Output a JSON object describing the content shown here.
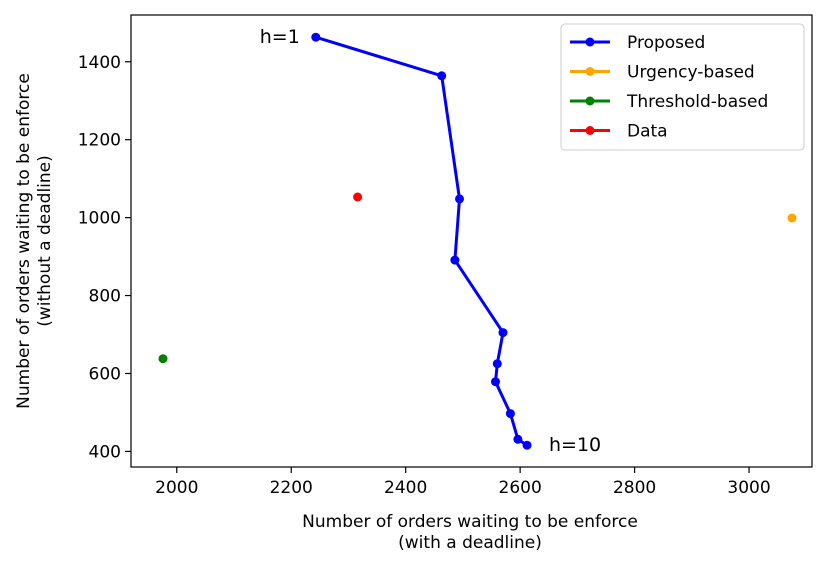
{
  "chart_data": {
    "type": "line",
    "xlabel": [
      "Number of orders waiting to be enforce",
      "(with a deadline)"
    ],
    "ylabel": [
      "Number of orders waiting to be enforce",
      "(without a deadline)"
    ],
    "xlim": [
      1920,
      3110
    ],
    "ylim": [
      360,
      1520
    ],
    "xticks": [
      2000,
      2200,
      2400,
      2600,
      2800,
      3000
    ],
    "yticks": [
      400,
      600,
      800,
      1000,
      1200,
      1400
    ],
    "grid": false,
    "legend_position": "top-right",
    "series": [
      {
        "name": "Proposed",
        "color": "#0000ff",
        "points": [
          [
            2243,
            1463
          ],
          [
            2463,
            1364
          ],
          [
            2494,
            1048
          ],
          [
            2486,
            891
          ],
          [
            2570,
            705
          ],
          [
            2560,
            625
          ],
          [
            2557,
            579
          ],
          [
            2583,
            497
          ],
          [
            2596,
            431
          ],
          [
            2612,
            416
          ]
        ]
      },
      {
        "name": "Urgency-based",
        "color": "#ffa500",
        "points": [
          [
            3075,
            999
          ]
        ]
      },
      {
        "name": "Threshold-based",
        "color": "#008000",
        "points": [
          [
            1976,
            638
          ]
        ]
      },
      {
        "name": "Data",
        "color": "#ff0000",
        "points": [
          [
            2316,
            1053
          ]
        ]
      }
    ],
    "annotations": [
      {
        "text": "h=1",
        "x": 2243,
        "y": 1463,
        "anchor": "end"
      },
      {
        "text": "h=10",
        "x": 2612,
        "y": 416,
        "anchor": "start"
      }
    ]
  }
}
